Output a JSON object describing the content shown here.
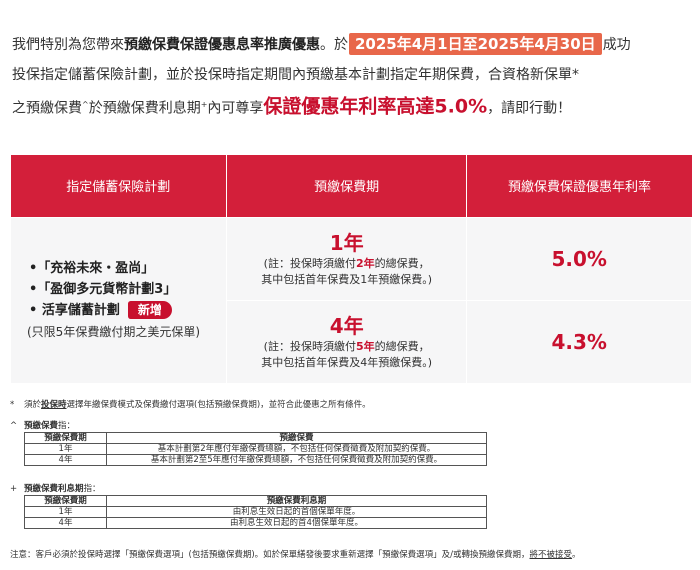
{
  "intro": {
    "line1_a": "我們特別為您帶來",
    "line1_bold": "預繳保費保證優惠息率推廣優惠",
    "line1_b": "。於",
    "date_range": "2025年4月1日至2025年4月30日",
    "line1_c": "成功",
    "line2": "投保指定儲蓄保險計劃，並於投保時指定期間內預繳基本計劃指定年期保費，合資格新保單*",
    "line3_a": "之預繳保費",
    "line3_sup1": "^",
    "line3_b": "於預繳保費利息期",
    "line3_sup2": "+",
    "line3_c": "內可尊享",
    "highlight": "保證優惠年利率高達5.0%",
    "line3_d": "，請即行動！"
  },
  "table": {
    "headers": [
      "指定儲蓄保險計劃",
      "預繳保費期",
      "預繳保費保證優惠年利率"
    ],
    "plans": [
      "•「充裕未來・盈尚」",
      "•「盈御多元貨幣計劃3」",
      "• 活享儲蓄計劃"
    ],
    "new_tag": "新增",
    "plan_note": "(只限5年保費繳付期之美元保單)",
    "rows": [
      {
        "period": "1年",
        "note_a": "(註：投保時須繳付",
        "note_years": "2年",
        "note_b": "的總保費，",
        "note_c": "其中包括首年保費及1年預繳保費。)",
        "rate": "5.0%"
      },
      {
        "period": "4年",
        "note_a": "(註：投保時須繳付",
        "note_years": "5年",
        "note_b": "的總保費，",
        "note_c": "其中包括首年保費及4年預繳保費。)",
        "rate": "4.3%"
      }
    ]
  },
  "footnotes": {
    "star_mark": "*",
    "star_a": "須於",
    "star_u": "投保時",
    "star_b": "選擇年繳保費模式及保費繳付選項(包括預繳保費期)，並符合此優惠之所有條件。",
    "caret_mark": "^",
    "caret_title": "預繳保費",
    "caret_suffix": "指：",
    "prem_table": {
      "headers": [
        "預繳保費期",
        "預繳保費"
      ],
      "rows": [
        [
          "1年",
          "基本計劃第2年應付年繳保費總額，不包括任何保費徵費及附加契約保費。"
        ],
        [
          "4年",
          "基本計劃第2至5年應付年繳保費總額，不包括任何保費徵費及附加契約保費。"
        ]
      ]
    },
    "plus_mark": "+",
    "plus_title": "預繳保費利息期",
    "plus_suffix": "指：",
    "int_table": {
      "headers": [
        "預繳保費期",
        "預繳保費利息期"
      ],
      "rows": [
        [
          "1年",
          "由利息生效日起的首個保單年度。"
        ],
        [
          "4年",
          "由利息生效日起的首4個保單年度。"
        ]
      ]
    },
    "bottom_a": "注意：客戶必須於投保時選擇「預繳保費選項」(包括預繳保費期)。如於保單繕發後要求重新選擇「預繳保費選項」及/或轉換預繳保費期，",
    "bottom_u": "將不被接受",
    "bottom_b": "。"
  }
}
